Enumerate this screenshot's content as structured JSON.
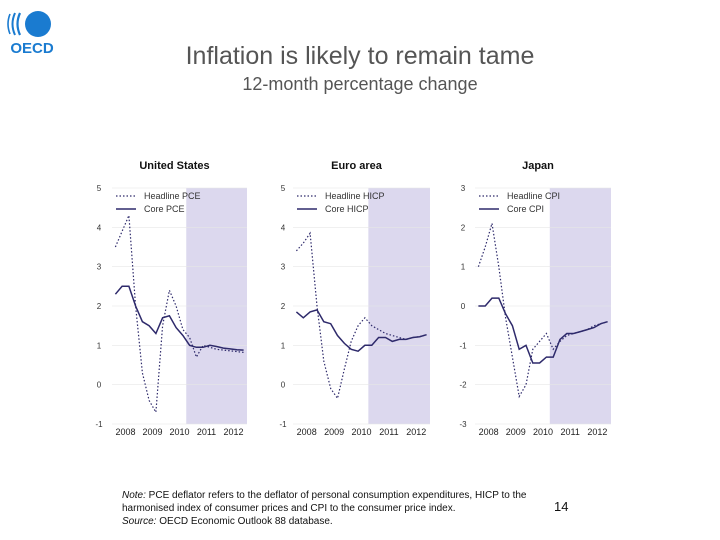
{
  "slide": {
    "title": "Inflation is likely to remain tame",
    "subtitle": "12-month percentage change",
    "logo_text": "OECD",
    "note_label": "Note:",
    "note_text": " PCE deflator refers to the deflator of personal consumption expenditures, HICP to the harmonised index of consumer prices and CPI to the consumer price index.",
    "source_label": "Source:",
    "source_text": " OECD Economic Outlook 88 database.",
    "page_number": "14"
  },
  "colors": {
    "line": "#2e2a6b",
    "forecast_shade": "#dcd8ee",
    "logo_blue": "#1a7bd0"
  },
  "chart_data": [
    {
      "type": "line",
      "title": "United States",
      "x": [
        "2008Q1",
        "2008Q2",
        "2008Q3",
        "2008Q4",
        "2009Q1",
        "2009Q2",
        "2009Q3",
        "2009Q4",
        "2010Q1",
        "2010Q2",
        "2010Q3",
        "2010Q4",
        "2011Q1",
        "2011Q2",
        "2011Q3",
        "2011Q4",
        "2012Q1",
        "2012Q2",
        "2012Q3",
        "2012Q4"
      ],
      "xtick_labels": [
        "2008",
        "2009",
        "2010",
        "2011",
        "2012"
      ],
      "ylim": [
        -1,
        5
      ],
      "ytick_labels": [
        "5",
        "4",
        "3",
        "2",
        "1",
        "0",
        "-1"
      ],
      "forecast_shaded_from": "2010Q4",
      "legend": "top-left",
      "series": [
        {
          "name": "Headline PCE",
          "style": "dotted",
          "values": [
            3.5,
            3.9,
            4.3,
            2.0,
            0.3,
            -0.4,
            -0.7,
            1.5,
            2.4,
            2.0,
            1.4,
            1.2,
            0.7,
            1.0,
            0.95,
            0.9,
            0.88,
            0.86,
            0.84,
            0.82
          ]
        },
        {
          "name": "Core PCE",
          "style": "solid",
          "values": [
            2.3,
            2.5,
            2.5,
            2.0,
            1.6,
            1.5,
            1.3,
            1.7,
            1.75,
            1.45,
            1.25,
            1.0,
            0.95,
            0.95,
            1.0,
            0.97,
            0.93,
            0.91,
            0.89,
            0.88
          ]
        }
      ]
    },
    {
      "type": "line",
      "title": "Euro area",
      "x": [
        "2008Q1",
        "2008Q2",
        "2008Q3",
        "2008Q4",
        "2009Q1",
        "2009Q2",
        "2009Q3",
        "2009Q4",
        "2010Q1",
        "2010Q2",
        "2010Q3",
        "2010Q4",
        "2011Q1",
        "2011Q2",
        "2011Q3",
        "2011Q4",
        "2012Q1",
        "2012Q2",
        "2012Q3",
        "2012Q4"
      ],
      "xtick_labels": [
        "2008",
        "2009",
        "2010",
        "2011",
        "2012"
      ],
      "ylim": [
        -1,
        5
      ],
      "ytick_labels": [
        "5",
        "4",
        "3",
        "2",
        "1",
        "0",
        "-1"
      ],
      "forecast_shaded_from": "2010Q4",
      "legend": "top-left",
      "series": [
        {
          "name": "Headline HICP",
          "style": "dotted",
          "values": [
            3.4,
            3.6,
            3.85,
            2.0,
            0.6,
            -0.1,
            -0.35,
            0.4,
            1.1,
            1.5,
            1.7,
            1.5,
            1.4,
            1.3,
            1.25,
            1.2,
            1.15,
            1.2,
            1.22,
            1.27
          ]
        },
        {
          "name": "Core HICP",
          "style": "solid",
          "values": [
            1.85,
            1.7,
            1.85,
            1.9,
            1.6,
            1.55,
            1.25,
            1.05,
            0.9,
            0.85,
            1.0,
            1.0,
            1.2,
            1.2,
            1.1,
            1.15,
            1.15,
            1.2,
            1.22,
            1.27
          ]
        }
      ]
    },
    {
      "type": "line",
      "title": "Japan",
      "x": [
        "2008Q1",
        "2008Q2",
        "2008Q3",
        "2008Q4",
        "2009Q1",
        "2009Q2",
        "2009Q3",
        "2009Q4",
        "2010Q1",
        "2010Q2",
        "2010Q3",
        "2010Q4",
        "2011Q1",
        "2011Q2",
        "2011Q3",
        "2011Q4",
        "2012Q1",
        "2012Q2",
        "2012Q3",
        "2012Q4"
      ],
      "xtick_labels": [
        "2008",
        "2009",
        "2010",
        "2011",
        "2012"
      ],
      "ylim": [
        -3,
        3
      ],
      "ytick_labels": [
        "3",
        "2",
        "1",
        "0",
        "-1",
        "-2",
        "-3"
      ],
      "forecast_shaded_from": "2010Q4",
      "legend": "top-left",
      "series": [
        {
          "name": "Headline CPI",
          "style": "dotted",
          "values": [
            1.0,
            1.5,
            2.1,
            1.0,
            -0.3,
            -1.3,
            -2.3,
            -2.0,
            -1.1,
            -0.9,
            -0.7,
            -1.1,
            -0.9,
            -0.75,
            -0.7,
            -0.65,
            -0.6,
            -0.5,
            -0.45,
            -0.4
          ]
        },
        {
          "name": "Core CPI",
          "style": "solid",
          "values": [
            0.0,
            0.0,
            0.2,
            0.2,
            -0.2,
            -0.5,
            -1.1,
            -1.0,
            -1.45,
            -1.45,
            -1.3,
            -1.3,
            -0.85,
            -0.7,
            -0.7,
            -0.65,
            -0.6,
            -0.55,
            -0.45,
            -0.4
          ]
        }
      ]
    }
  ]
}
